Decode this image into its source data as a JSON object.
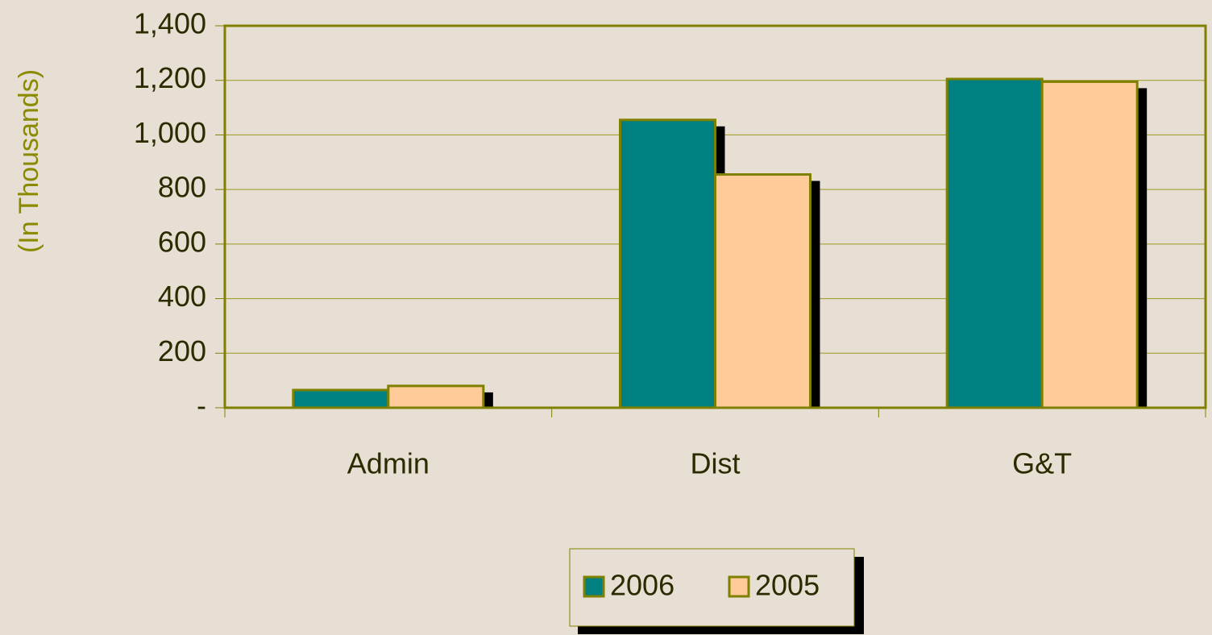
{
  "chart_data": {
    "type": "bar",
    "y_label": "(In Thousands)",
    "categories": [
      "Admin",
      "Dist",
      "G&T"
    ],
    "series": [
      {
        "name": "2006",
        "color": "#008080",
        "values": [
          65,
          1055,
          1205
        ]
      },
      {
        "name": "2005",
        "color": "#ffcc99",
        "values": [
          80,
          855,
          1195
        ]
      }
    ],
    "ylim": [
      0,
      1400
    ],
    "yticks": [
      {
        "value": 0,
        "label": "-"
      },
      200,
      400,
      600,
      800,
      {
        "value": 1000,
        "label": "1,000"
      },
      {
        "value": 1200,
        "label": "1,200"
      },
      {
        "value": 1400,
        "label": "1,400"
      }
    ],
    "grid": true,
    "legend": "bottom"
  }
}
